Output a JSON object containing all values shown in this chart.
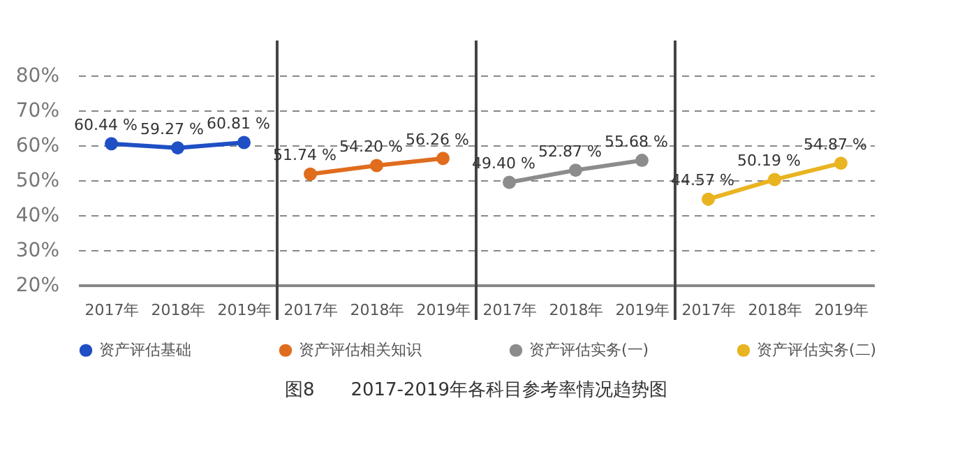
{
  "chart_data": {
    "type": "line",
    "title": "图8　　2017-2019年各科目参考率情况趋势图",
    "categories": [
      "2017年",
      "2018年",
      "2019年",
      "2017年",
      "2018年",
      "2019年",
      "2017年",
      "2018年",
      "2019年",
      "2017年",
      "2018年",
      "2019年"
    ],
    "series": [
      {
        "name": "资产评估基础",
        "color": "#1f4fc4",
        "values": [
          60.44,
          59.27,
          60.81,
          null,
          null,
          null,
          null,
          null,
          null,
          null,
          null,
          null
        ],
        "value_labels": [
          "60.44 %",
          "59.27 %",
          "60.81 %",
          null,
          null,
          null,
          null,
          null,
          null,
          null,
          null,
          null
        ]
      },
      {
        "name": "资产评估相关知识",
        "color": "#e06c1e",
        "values": [
          null,
          null,
          null,
          51.74,
          54.2,
          56.26,
          null,
          null,
          null,
          null,
          null,
          null
        ],
        "value_labels": [
          null,
          null,
          null,
          "51.74 %",
          "54.20 %",
          "56.26 %",
          null,
          null,
          null,
          null,
          null,
          null
        ]
      },
      {
        "name": "资产评估实务(一)",
        "color": "#8c8c8c",
        "values": [
          null,
          null,
          null,
          null,
          null,
          null,
          49.4,
          52.87,
          55.68,
          null,
          null,
          null
        ],
        "value_labels": [
          null,
          null,
          null,
          null,
          null,
          null,
          "49.40 %",
          "52.87 %",
          "55.68 %",
          null,
          null,
          null
        ]
      },
      {
        "name": "资产评估实务(二)",
        "color": "#e8b420",
        "values": [
          null,
          null,
          null,
          null,
          null,
          null,
          null,
          null,
          null,
          44.57,
          50.19,
          54.87
        ],
        "value_labels": [
          null,
          null,
          null,
          null,
          null,
          null,
          null,
          null,
          null,
          "44.57 %",
          "50.19 %",
          "54.87 %"
        ]
      }
    ],
    "ylim": [
      20,
      80
    ],
    "yticks": [
      {
        "value": 20,
        "label": "20%"
      },
      {
        "value": 30,
        "label": "30%"
      },
      {
        "value": 40,
        "label": "40%"
      },
      {
        "value": 50,
        "label": "50%"
      },
      {
        "value": 60,
        "label": "60%"
      },
      {
        "value": 70,
        "label": "70%"
      },
      {
        "value": 80,
        "label": "80%"
      }
    ],
    "grid": "y",
    "legend": "bottom",
    "marker": "circle",
    "line_style": "solid"
  }
}
